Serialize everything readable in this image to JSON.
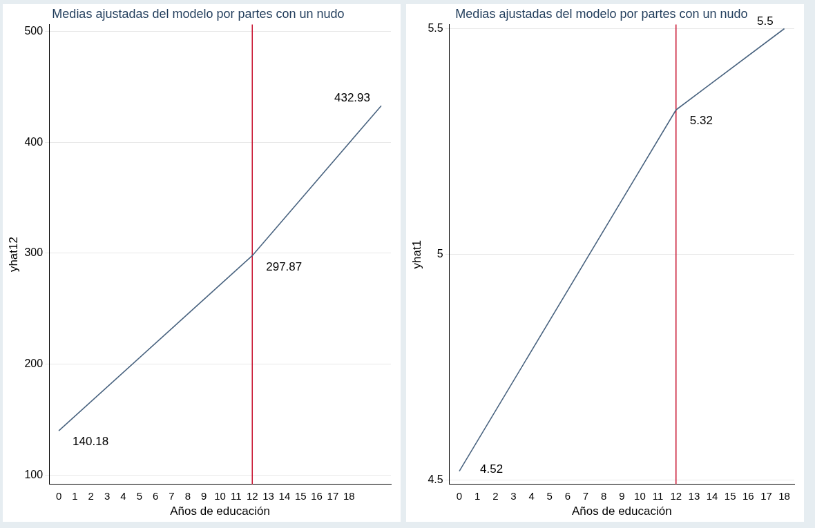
{
  "chart_data": [
    {
      "type": "line",
      "title": "Medias ajustadas del modelo por partes con un nudo",
      "xlabel": "Años de educación",
      "ylabel": "yhat12",
      "x": [
        0,
        12,
        20
      ],
      "series": [
        {
          "color": "#4a6480",
          "values": [
            140.18,
            297.87,
            432.93
          ]
        }
      ],
      "xlim": [
        -0.6,
        20.6
      ],
      "xticks": [
        0,
        1,
        2,
        3,
        4,
        5,
        6,
        7,
        8,
        9,
        10,
        11,
        12,
        13,
        14,
        15,
        16,
        17,
        18
      ],
      "ylim": [
        92,
        506
      ],
      "yticks": [
        100,
        200,
        300,
        400,
        500
      ],
      "grid": "y",
      "marker": "none",
      "ref_lines": [
        {
          "axis": "x",
          "value": 12,
          "color": "#c8102e"
        }
      ],
      "annotations": [
        {
          "text": "140.18",
          "x": 0,
          "y": 140.18
        },
        {
          "text": "297.87",
          "x": 12,
          "y": 297.87
        },
        {
          "text": "432.93",
          "x": 20,
          "y": 432.93
        }
      ]
    },
    {
      "type": "line",
      "title": "Medias ajustadas del modelo por partes con un nudo",
      "xlabel": "Años de educación",
      "ylabel": "yhat1",
      "x": [
        0,
        12,
        18
      ],
      "series": [
        {
          "color": "#4a6480",
          "values": [
            4.52,
            5.32,
            5.5
          ]
        }
      ],
      "xlim": [
        -0.55,
        18.55
      ],
      "xticks": [
        0,
        1,
        2,
        3,
        4,
        5,
        6,
        7,
        8,
        9,
        10,
        11,
        12,
        13,
        14,
        15,
        16,
        17,
        18
      ],
      "ylim": [
        4.491,
        5.509
      ],
      "yticks": [
        4.5,
        5,
        5.5
      ],
      "grid": "y",
      "marker": "none",
      "ref_lines": [
        {
          "axis": "x",
          "value": 12,
          "color": "#c8102e"
        }
      ],
      "annotations": [
        {
          "text": "4.52",
          "x": 0,
          "y": 4.52
        },
        {
          "text": "5.32",
          "x": 12,
          "y": 5.32
        },
        {
          "text": "5.5",
          "x": 18,
          "y": 5.5
        }
      ]
    }
  ]
}
